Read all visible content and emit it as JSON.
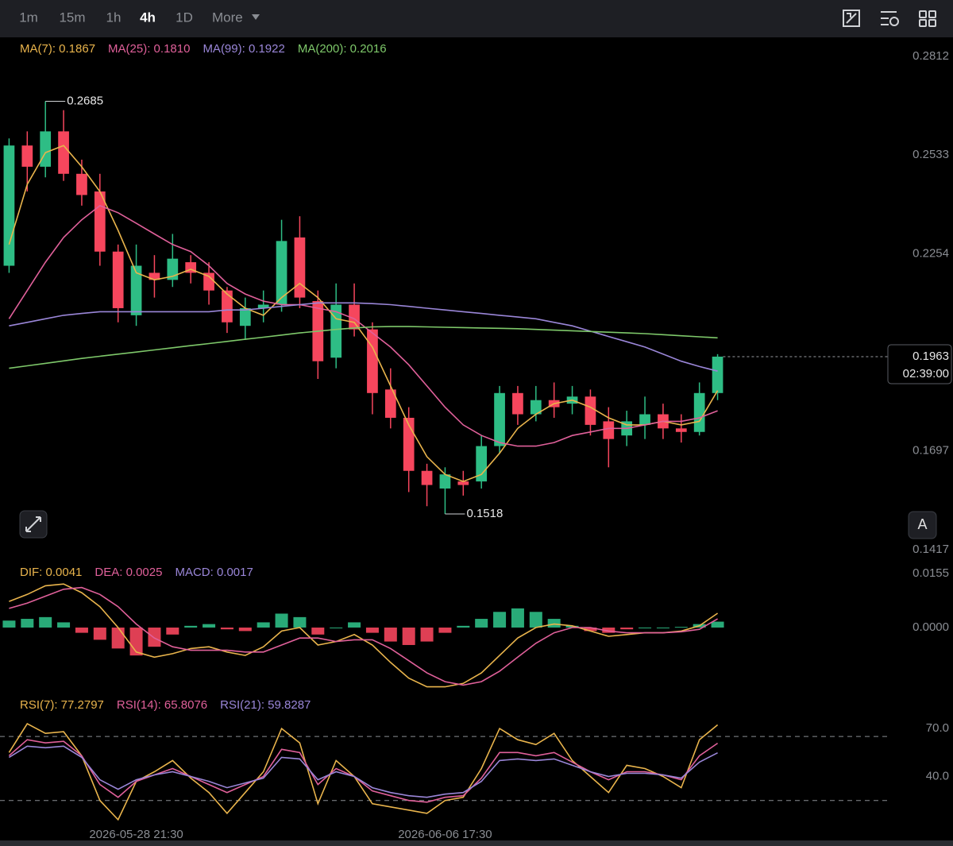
{
  "toolbar": {
    "intervals": [
      "1m",
      "15m",
      "1h",
      "4h",
      "1D",
      "More"
    ],
    "button_label": "A"
  },
  "chart_data": [
    {
      "type": "candlestick",
      "categories": [
        null,
        null,
        null,
        null,
        null,
        null,
        null,
        "2026-05-28 21:30",
        null,
        null,
        null,
        null,
        null,
        null,
        null,
        null,
        null,
        null,
        null,
        null,
        null,
        null,
        null,
        null,
        "2026-06-06 17:30",
        null,
        null,
        null,
        null,
        null,
        null,
        null,
        null,
        null,
        null,
        null,
        null,
        null,
        null,
        null
      ],
      "open": [
        0.222,
        0.256,
        0.25,
        0.26,
        0.248,
        0.243,
        0.226,
        0.208,
        0.22,
        0.218,
        0.223,
        0.22,
        0.215,
        0.205,
        0.21,
        0.211,
        0.23,
        0.212,
        0.196,
        0.211,
        0.204,
        0.187,
        0.179,
        0.164,
        0.159,
        0.161,
        0.161,
        0.171,
        0.186,
        0.18,
        0.184,
        0.183,
        0.185,
        0.178,
        0.174,
        0.177,
        0.18,
        0.176,
        0.175,
        0.186
      ],
      "high": [
        0.258,
        0.26,
        0.2685,
        0.266,
        0.252,
        0.248,
        0.228,
        0.228,
        0.225,
        0.231,
        0.225,
        0.223,
        0.216,
        0.213,
        0.215,
        0.235,
        0.236,
        0.215,
        0.217,
        0.217,
        0.206,
        0.193,
        0.182,
        0.166,
        0.165,
        0.164,
        0.174,
        0.188,
        0.188,
        0.188,
        0.189,
        0.188,
        0.187,
        0.182,
        0.181,
        0.185,
        0.183,
        0.18,
        0.189,
        0.197
      ],
      "low": [
        0.22,
        0.243,
        0.247,
        0.246,
        0.239,
        0.222,
        0.206,
        0.205,
        0.213,
        0.216,
        0.217,
        0.211,
        0.203,
        0.201,
        0.206,
        0.209,
        0.21,
        0.19,
        0.193,
        0.202,
        0.18,
        0.176,
        0.158,
        0.154,
        0.1518,
        0.157,
        0.159,
        0.169,
        0.177,
        0.178,
        0.179,
        0.18,
        0.174,
        0.165,
        0.171,
        0.173,
        0.173,
        0.172,
        0.174,
        0.184
      ],
      "close": [
        0.256,
        0.25,
        0.26,
        0.248,
        0.242,
        0.226,
        0.21,
        0.222,
        0.218,
        0.224,
        0.22,
        0.215,
        0.206,
        0.21,
        0.211,
        0.229,
        0.213,
        0.195,
        0.211,
        0.204,
        0.186,
        0.179,
        0.164,
        0.16,
        0.163,
        0.16,
        0.171,
        0.186,
        0.18,
        0.184,
        0.182,
        0.185,
        0.177,
        0.173,
        0.178,
        0.18,
        0.176,
        0.175,
        0.186,
        0.1963
      ],
      "up_color": "#2ebd85",
      "down_color": "#f6465d",
      "series": [
        {
          "name": "MA(7): 0.1867",
          "color": "#e9b44c",
          "values": [
            0.228,
            0.245,
            0.254,
            0.256,
            0.25,
            0.243,
            0.232,
            0.22,
            0.218,
            0.219,
            0.221,
            0.219,
            0.214,
            0.21,
            0.208,
            0.213,
            0.217,
            0.213,
            0.207,
            0.206,
            0.199,
            0.188,
            0.177,
            0.168,
            0.163,
            0.161,
            0.163,
            0.169,
            0.176,
            0.18,
            0.183,
            0.184,
            0.182,
            0.179,
            0.177,
            0.177,
            0.178,
            0.177,
            0.178,
            0.1867
          ]
        },
        {
          "name": "MA(25): 0.1810",
          "color": "#e0609a",
          "values": [
            0.207,
            0.215,
            0.223,
            0.23,
            0.235,
            0.239,
            0.237,
            0.234,
            0.231,
            0.228,
            0.226,
            0.222,
            0.217,
            0.214,
            0.212,
            0.211,
            0.211,
            0.21,
            0.209,
            0.207,
            0.203,
            0.199,
            0.194,
            0.188,
            0.182,
            0.177,
            0.174,
            0.172,
            0.171,
            0.171,
            0.172,
            0.174,
            0.175,
            0.176,
            0.176,
            0.177,
            0.178,
            0.178,
            0.179,
            0.181
          ]
        },
        {
          "name": "MA(99): 0.1922",
          "color": "#9a86d8",
          "values": [
            0.205,
            0.206,
            0.207,
            0.208,
            0.2085,
            0.209,
            0.209,
            0.209,
            0.209,
            0.209,
            0.209,
            0.209,
            0.2095,
            0.2095,
            0.21,
            0.2105,
            0.211,
            0.2115,
            0.2115,
            0.2115,
            0.2113,
            0.211,
            0.2105,
            0.21,
            0.2095,
            0.209,
            0.2085,
            0.208,
            0.2075,
            0.207,
            0.206,
            0.205,
            0.2035,
            0.202,
            0.2005,
            0.199,
            0.197,
            0.195,
            0.1935,
            0.1922
          ]
        },
        {
          "name": "MA(200): 0.2016",
          "color": "#7ec86a",
          "values": [
            0.193,
            0.1937,
            0.1944,
            0.1951,
            0.1958,
            0.1964,
            0.197,
            0.1976,
            0.1982,
            0.1988,
            0.1994,
            0.2,
            0.2006,
            0.2012,
            0.2018,
            0.2024,
            0.203,
            0.2035,
            0.204,
            0.2044,
            0.2047,
            0.2048,
            0.2048,
            0.2047,
            0.2046,
            0.2045,
            0.2044,
            0.2043,
            0.2042,
            0.204,
            0.2038,
            0.2036,
            0.2034,
            0.2032,
            0.203,
            0.2028,
            0.2025,
            0.2022,
            0.2019,
            0.2016
          ]
        }
      ],
      "high_mark": 0.2685,
      "low_mark": 0.1518,
      "last_price": 0.1963,
      "countdown": "02:39:00",
      "ylim": [
        0.1417,
        0.2812
      ],
      "yticks": [
        0.2812,
        0.2533,
        0.2254,
        0.1976,
        0.1697,
        0.1417
      ]
    },
    {
      "type": "macd",
      "series": [
        {
          "name": "DIF: 0.0041",
          "color": "#e9b44c",
          "values": [
            0.0075,
            0.0095,
            0.012,
            0.0125,
            0.01,
            0.006,
            0.0,
            -0.007,
            -0.0085,
            -0.0075,
            -0.006,
            -0.0055,
            -0.007,
            -0.008,
            -0.0055,
            -0.001,
            0.0,
            -0.005,
            -0.004,
            -0.002,
            -0.005,
            -0.01,
            -0.0145,
            -0.017,
            -0.017,
            -0.016,
            -0.013,
            -0.008,
            -0.003,
            0.0,
            0.001,
            0.0005,
            -0.001,
            -0.0025,
            -0.002,
            -0.0015,
            -0.0015,
            -0.001,
            0.0005,
            0.0041
          ]
        },
        {
          "name": "DEA: 0.0025",
          "color": "#e0609a",
          "values": [
            0.0055,
            0.007,
            0.009,
            0.011,
            0.0115,
            0.0095,
            0.006,
            0.001,
            -0.003,
            -0.0055,
            -0.0065,
            -0.0065,
            -0.0065,
            -0.007,
            -0.007,
            -0.005,
            -0.003,
            -0.003,
            -0.004,
            -0.0035,
            -0.0035,
            -0.006,
            -0.0095,
            -0.013,
            -0.0155,
            -0.0165,
            -0.0155,
            -0.0125,
            -0.0085,
            -0.0045,
            -0.0015,
            0.0,
            0.0,
            -0.001,
            -0.0015,
            -0.0015,
            -0.0015,
            -0.0012,
            -0.0005,
            0.0025
          ]
        },
        {
          "name": "MACD: 0.0017",
          "color": "#9a86d8",
          "style": "histogram",
          "up_color": "#2ebd85",
          "down_color": "#f6465d",
          "values": [
            0.002,
            0.0025,
            0.003,
            0.0015,
            -0.0015,
            -0.0035,
            -0.006,
            -0.008,
            -0.0055,
            -0.002,
            0.0005,
            0.001,
            -0.0005,
            -0.001,
            0.0015,
            0.004,
            0.003,
            -0.002,
            0.0,
            0.0015,
            -0.0015,
            -0.004,
            -0.005,
            -0.004,
            -0.0015,
            0.0005,
            0.0025,
            0.0045,
            0.0055,
            0.0045,
            0.0025,
            0.0005,
            -0.001,
            -0.0015,
            -0.0005,
            0.0,
            0.0,
            0.0002,
            0.001,
            0.0017
          ]
        }
      ],
      "ylim": [
        -0.0205,
        0.0155
      ],
      "yticks": [
        0.0155,
        {
          "value": 0,
          "label": "0.0000"
        }
      ]
    },
    {
      "type": "rsi",
      "series": [
        {
          "name": "RSI(7): 77.2797",
          "color": "#e9b44c",
          "values": [
            60,
            78,
            72,
            73,
            58,
            30,
            18,
            42,
            48,
            55,
            44,
            35,
            22,
            35,
            48,
            75,
            66,
            28,
            55,
            45,
            28,
            26,
            24,
            22,
            30,
            32,
            50,
            75,
            68,
            65,
            72,
            55,
            45,
            35,
            52,
            50,
            45,
            38,
            68,
            77.2797
          ]
        },
        {
          "name": "RSI(14): 65.8076",
          "color": "#e0609a",
          "values": [
            58,
            68,
            66,
            67,
            58,
            40,
            32,
            42,
            46,
            50,
            45,
            40,
            35,
            40,
            45,
            62,
            60,
            40,
            50,
            45,
            36,
            33,
            30,
            29,
            32,
            33,
            44,
            60,
            60,
            58,
            60,
            54,
            48,
            43,
            48,
            48,
            46,
            43,
            58,
            65.8076
          ]
        },
        {
          "name": "RSI(21): 59.8287",
          "color": "#9a86d8",
          "values": [
            57,
            64,
            63,
            64,
            57,
            43,
            37,
            43,
            46,
            48,
            45,
            42,
            38,
            41,
            44,
            57,
            56,
            43,
            48,
            45,
            38,
            35,
            33,
            32,
            34,
            35,
            42,
            55,
            56,
            55,
            56,
            52,
            48,
            45,
            47,
            47,
            46,
            44,
            54,
            59.8287
          ]
        }
      ],
      "levels": [
        70,
        30
      ],
      "ylim": [
        12,
        83
      ],
      "yticks": [
        {
          "value": 70,
          "label": "70.0"
        },
        {
          "value": 40,
          "label": "40.0"
        }
      ]
    }
  ]
}
